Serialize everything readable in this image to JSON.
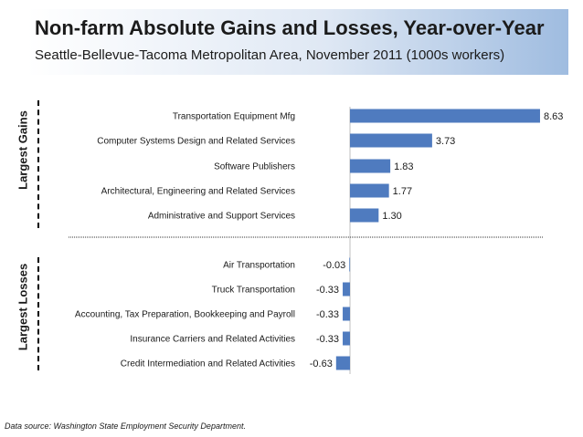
{
  "header": {
    "title": "Non-farm Absolute Gains and Losses, Year-over-Year",
    "subtitle": "Seattle-Bellevue-Tacoma Metropolitan Area, November 2011 (1000s workers)"
  },
  "groups": {
    "gains_label": "Largest Gains",
    "losses_label": "Largest Losses"
  },
  "source": "Data source: Washington State Employment Security Department.",
  "colors": {
    "bar": "#4f7bbf",
    "header_accent": "#9fbce0"
  },
  "chart_data": {
    "type": "bar",
    "orientation": "horizontal",
    "categories": [
      "Transportation Equipment Mfg",
      "Computer Systems Design and Related Services",
      "Software Publishers",
      "Architectural, Engineering and Related Services",
      "Administrative and Support Services",
      "Air Transportation",
      "Truck Transportation",
      "Accounting, Tax Preparation, Bookkeeping and Payroll",
      "Insurance Carriers and Related Activities",
      "Credit Intermediation and Related Activities"
    ],
    "values": [
      8.63,
      3.73,
      1.83,
      1.77,
      1.3,
      -0.03,
      -0.33,
      -0.33,
      -0.33,
      -0.63
    ],
    "value_labels": [
      "8.63",
      "3.73",
      "1.83",
      "1.77",
      "1.30",
      "-0.03",
      "-0.33",
      "-0.33",
      "-0.33",
      "-0.63"
    ],
    "groups": [
      {
        "name": "Largest Gains",
        "indices": [
          0,
          1,
          2,
          3,
          4
        ]
      },
      {
        "name": "Largest Losses",
        "indices": [
          5,
          6,
          7,
          8,
          9
        ]
      }
    ],
    "title": "Non-farm Absolute Gains and Losses, Year-over-Year",
    "subtitle": "Seattle-Bellevue-Tacoma Metropolitan Area, November 2011 (1000s workers)",
    "grid": false,
    "legend": "none"
  }
}
